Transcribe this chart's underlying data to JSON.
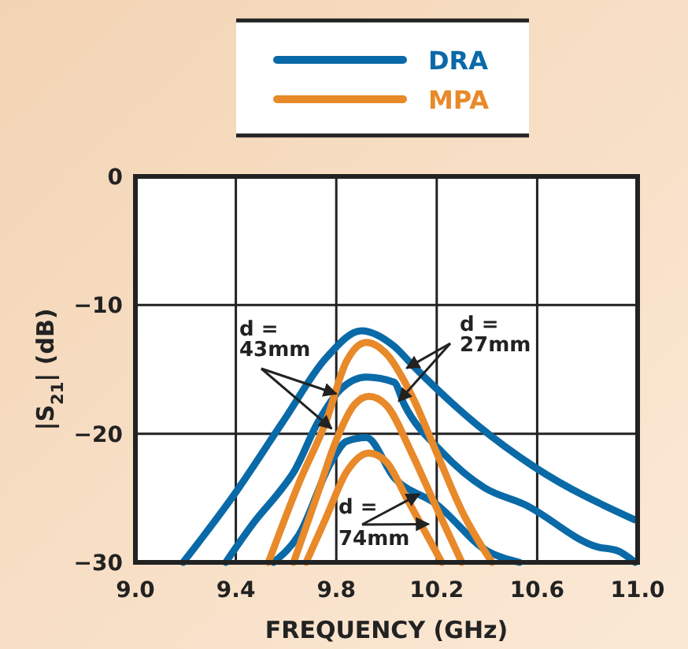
{
  "chart_data": {
    "type": "line",
    "xlabel": "FREQUENCY (GHz)",
    "ylabel": "|S$_{21}$| (dB)",
    "xlim": [
      9.0,
      11.0
    ],
    "ylim": [
      -30,
      0
    ],
    "xticks": [
      {
        "value": 9.0,
        "label": "9.0"
      },
      {
        "value": 9.4,
        "label": "9.4"
      },
      {
        "value": 9.8,
        "label": "9.8"
      },
      {
        "value": 10.2,
        "label": "10.2"
      },
      {
        "value": 10.6,
        "label": "10.6"
      },
      {
        "value": 11.0,
        "label": "11.0"
      }
    ],
    "yticks": [
      0,
      -10,
      -20,
      -30
    ],
    "grid": true,
    "legend": "top",
    "marker": "none",
    "line_style": "solid",
    "annotations": [
      {
        "text": "d =\n43mm",
        "x": 9.8,
        "y": -16.9
      },
      {
        "text": "d =\n27mm",
        "x": 10.08,
        "y": -14.9
      },
      {
        "text": "d =\n74mm",
        "x": 10.13,
        "y": -24.7
      }
    ],
    "series": [
      {
        "name": "DRA",
        "color": "#0a6aa8",
        "x": [
          9.19,
          9.38,
          9.59,
          9.76,
          9.9,
          10.03,
          10.11,
          10.36,
          10.59,
          10.99
        ],
        "values": [
          -30,
          -25.1,
          -19,
          -14.1,
          -12,
          -13.2,
          -14.8,
          -19.3,
          -22.6,
          -26.7
        ]
      },
      {
        "color": "#0a6aa8",
        "x": [
          9.36,
          9.48,
          9.57,
          9.63,
          9.73,
          9.82,
          9.92,
          10.03,
          10.07,
          10.22,
          10.39,
          10.55,
          10.84,
          10.92,
          10.99
        ],
        "values": [
          -30,
          -26.7,
          -24.6,
          -23,
          -19,
          -16.5,
          -15.6,
          -16,
          -17.7,
          -21.4,
          -24.2,
          -25.5,
          -28.8,
          -29.1,
          -30
        ]
      },
      {
        "color": "#0a6aa8",
        "x": [
          9.55,
          9.65,
          9.78,
          9.84,
          9.92,
          10.03,
          10.2,
          10.4,
          10.53
        ],
        "values": [
          -30,
          -27.9,
          -22.2,
          -20.6,
          -20.3,
          -23.4,
          -25.5,
          -29.1,
          -30
        ]
      },
      {
        "name": "MPA",
        "color": "#e8892a",
        "x": [
          9.53,
          9.65,
          9.76,
          9.84,
          9.92,
          10.0,
          10.1,
          10.2,
          10.3,
          10.42
        ],
        "values": [
          -30,
          -23.9,
          -19,
          -14.4,
          -12.9,
          -13.8,
          -17,
          -21.5,
          -26,
          -30
        ]
      },
      {
        "color": "#e8892a",
        "x": [
          9.63,
          9.72,
          9.8,
          9.87,
          9.93,
          10.0,
          10.1,
          10.2,
          10.3
        ],
        "values": [
          -30,
          -25,
          -20.5,
          -17.8,
          -17.1,
          -17.8,
          -21.5,
          -25.8,
          -30
        ]
      },
      {
        "color": "#e8892a",
        "x": [
          9.68,
          9.76,
          9.84,
          9.93,
          10.0,
          10.08,
          10.15,
          10.22
        ],
        "values": [
          -30,
          -26.5,
          -23,
          -21.5,
          -22.2,
          -25,
          -27.5,
          -30
        ]
      }
    ]
  }
}
